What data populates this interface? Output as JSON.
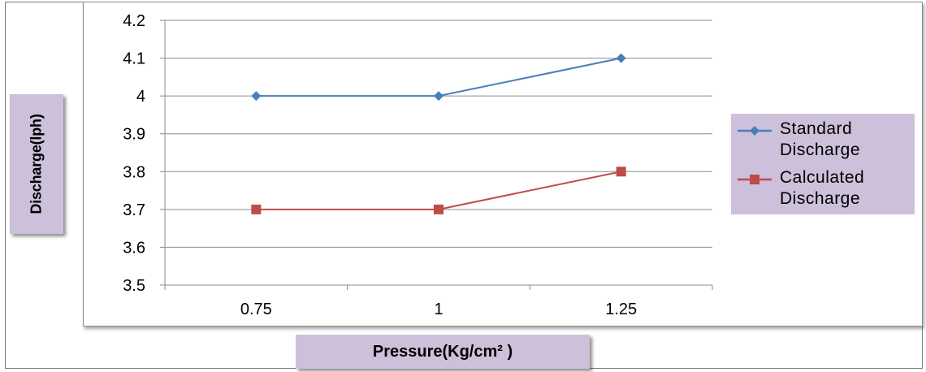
{
  "chart_data": {
    "type": "line",
    "categories": [
      "0.75",
      "1",
      "1.25"
    ],
    "series": [
      {
        "name": "Standard Discharge",
        "values": [
          4.0,
          4.0,
          4.1
        ],
        "color": "#4a7ebb",
        "marker": "diamond"
      },
      {
        "name": "Calculated Discharge",
        "values": [
          3.7,
          3.7,
          3.8
        ],
        "color": "#be4b48",
        "marker": "square"
      }
    ],
    "xlabel": "Pressure(Kg/cm² )",
    "ylabel": "Discharge(lph)",
    "ylim": [
      3.5,
      4.2
    ],
    "yticks": [
      "3.5",
      "3.6",
      "3.7",
      "3.8",
      "3.9",
      "4",
      "4.1",
      "4.2"
    ],
    "grid": true,
    "legend_position": "right"
  }
}
